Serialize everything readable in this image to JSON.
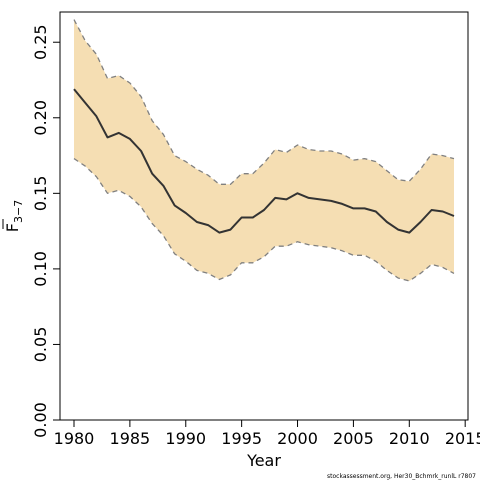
{
  "chart_data": {
    "type": "line",
    "title": "",
    "xlabel": "Year",
    "ylabel": "F",
    "ylabel_subscript": "3−7",
    "xlim": [
      1979,
      2015
    ],
    "ylim": [
      0,
      0.27
    ],
    "xticks": [
      1980,
      1985,
      1990,
      1995,
      2000,
      2005,
      2010,
      2015
    ],
    "yticks": [
      0.0,
      0.05,
      0.1,
      0.15,
      0.2,
      0.25
    ],
    "xtick_labels": [
      "1980",
      "1985",
      "1990",
      "1995",
      "2000",
      "2005",
      "2010",
      "2015"
    ],
    "ytick_labels": [
      "0.00",
      "0.05",
      "0.10",
      "0.15",
      "0.20",
      "0.25"
    ],
    "grid": false,
    "legend": "none",
    "colors": {
      "band": "#f5deb3",
      "line": "#333333",
      "bounds": "#808080"
    },
    "x": [
      1980,
      1981,
      1982,
      1983,
      1984,
      1985,
      1986,
      1987,
      1988,
      1989,
      1990,
      1991,
      1992,
      1993,
      1994,
      1995,
      1996,
      1997,
      1998,
      1999,
      2000,
      2001,
      2002,
      2003,
      2004,
      2005,
      2006,
      2007,
      2008,
      2009,
      2010,
      2011,
      2012,
      2013,
      2014
    ],
    "series": [
      {
        "role": "estimate",
        "values": [
          0.219,
          0.21,
          0.201,
          0.187,
          0.19,
          0.186,
          0.178,
          0.163,
          0.155,
          0.142,
          0.137,
          0.131,
          0.129,
          0.124,
          0.126,
          0.134,
          0.134,
          0.139,
          0.147,
          0.146,
          0.15,
          0.147,
          0.146,
          0.145,
          0.143,
          0.14,
          0.14,
          0.138,
          0.131,
          0.126,
          0.124,
          0.131,
          0.139,
          0.138,
          0.135
        ]
      },
      {
        "role": "upper",
        "values": [
          0.265,
          0.251,
          0.242,
          0.226,
          0.228,
          0.223,
          0.214,
          0.198,
          0.189,
          0.175,
          0.171,
          0.166,
          0.162,
          0.156,
          0.156,
          0.163,
          0.163,
          0.17,
          0.179,
          0.177,
          0.182,
          0.179,
          0.178,
          0.178,
          0.176,
          0.172,
          0.173,
          0.171,
          0.165,
          0.159,
          0.158,
          0.166,
          0.176,
          0.175,
          0.173
        ]
      },
      {
        "role": "lower",
        "values": [
          0.173,
          0.168,
          0.161,
          0.15,
          0.152,
          0.148,
          0.141,
          0.13,
          0.122,
          0.11,
          0.105,
          0.099,
          0.097,
          0.093,
          0.096,
          0.104,
          0.104,
          0.108,
          0.115,
          0.115,
          0.118,
          0.116,
          0.115,
          0.114,
          0.112,
          0.109,
          0.109,
          0.105,
          0.099,
          0.094,
          0.092,
          0.097,
          0.103,
          0.101,
          0.097
        ]
      }
    ]
  },
  "footer": {
    "credit": "stockassessment.org, Her30_Bchmrk_runlL r7807"
  }
}
